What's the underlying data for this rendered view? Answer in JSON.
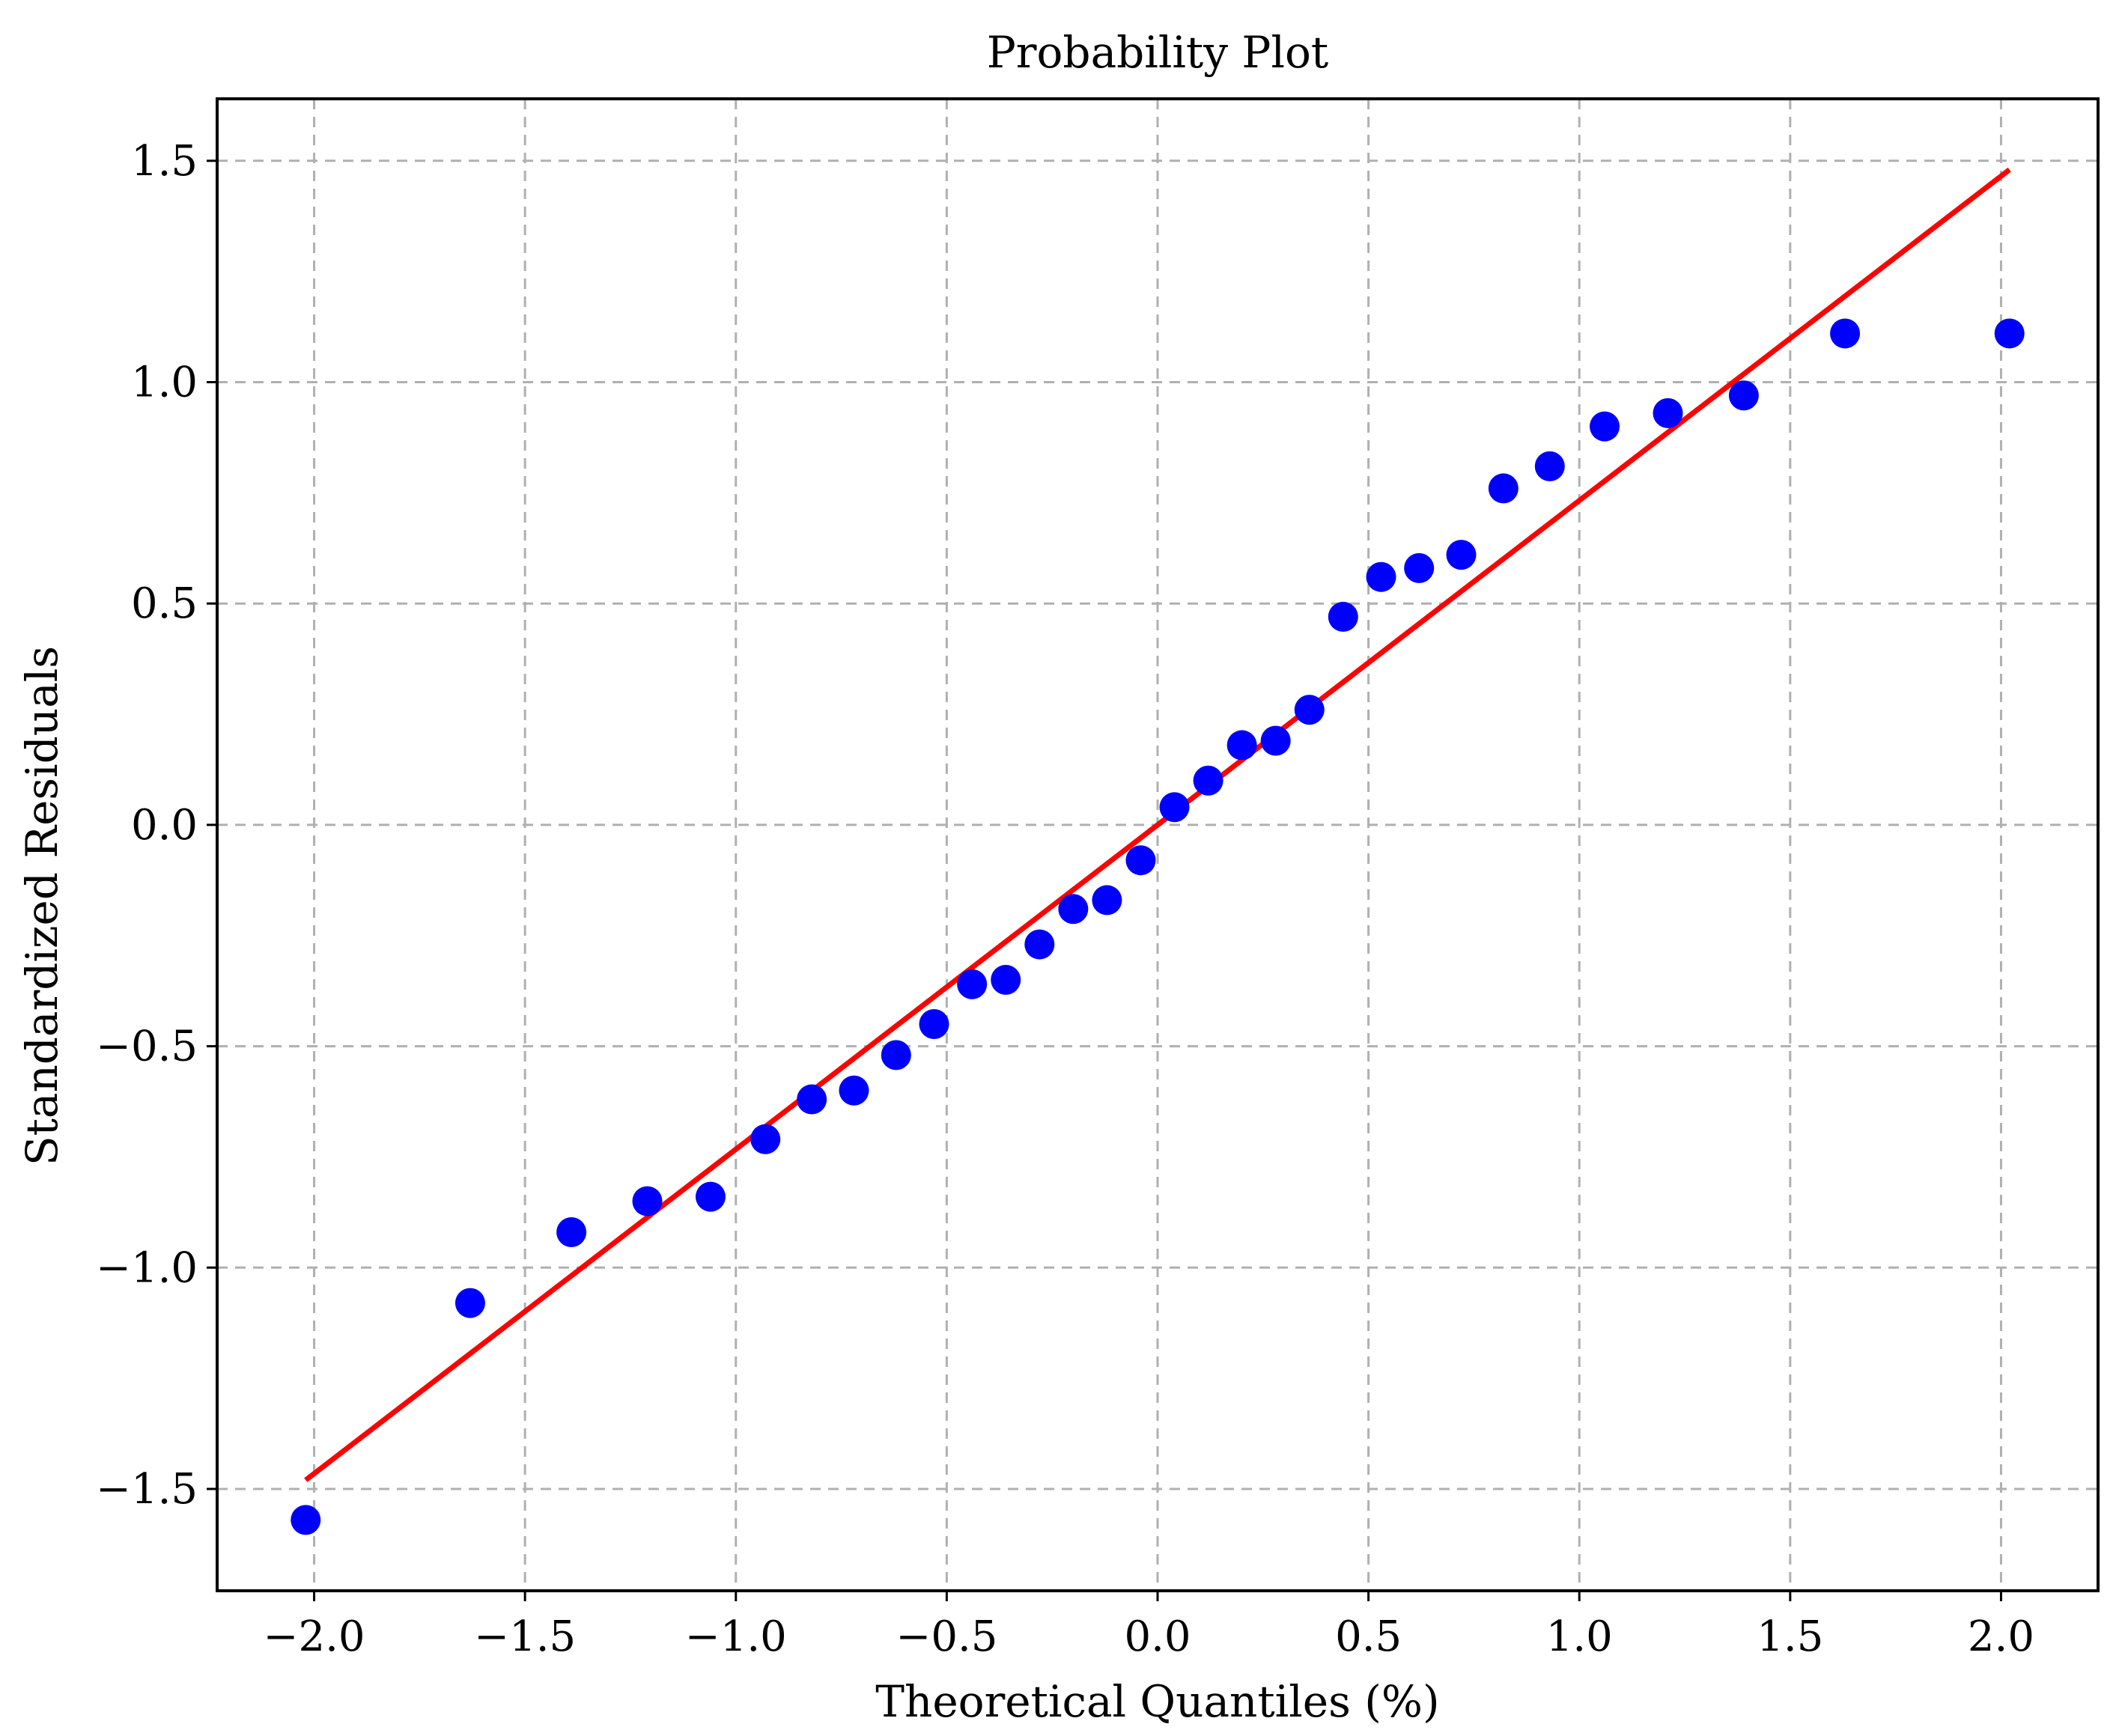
{
  "chart_data": {
    "type": "scatter",
    "title": "Probability Plot",
    "xlabel": "Theoretical Quantiles (%)",
    "ylabel": "Standardized Residuals",
    "xlim": [
      -2.23,
      2.23
    ],
    "ylim": [
      -1.73,
      1.64
    ],
    "grid": true,
    "x_ticks": [
      -2.0,
      -1.5,
      -1.0,
      -0.5,
      0.0,
      0.5,
      1.0,
      1.5,
      2.0
    ],
    "x_tick_labels": [
      "−2.0",
      "−1.5",
      "−1.0",
      "−0.5",
      "0.0",
      "0.5",
      "1.0",
      "1.5",
      "2.0"
    ],
    "y_ticks": [
      -1.5,
      -1.0,
      -0.5,
      0.0,
      0.5,
      1.0,
      1.5
    ],
    "y_tick_labels": [
      "−1.5",
      "−1.0",
      "−0.5",
      "0.0",
      "0.5",
      "1.0",
      "1.5"
    ],
    "series": [
      {
        "name": "Standardized residuals",
        "kind": "scatter",
        "color": "#0000ff",
        "points": [
          [
            -2.02,
            -1.57
          ],
          [
            -1.63,
            -1.08
          ],
          [
            -1.39,
            -0.92
          ],
          [
            -1.21,
            -0.85
          ],
          [
            -1.06,
            -0.84
          ],
          [
            -0.93,
            -0.71
          ],
          [
            -0.82,
            -0.62
          ],
          [
            -0.72,
            -0.6
          ],
          [
            -0.62,
            -0.52
          ],
          [
            -0.53,
            -0.45
          ],
          [
            -0.44,
            -0.36
          ],
          [
            -0.36,
            -0.35
          ],
          [
            -0.28,
            -0.27
          ],
          [
            -0.2,
            -0.19
          ],
          [
            -0.12,
            -0.17
          ],
          [
            -0.04,
            -0.08
          ],
          [
            0.04,
            0.04
          ],
          [
            0.12,
            0.1
          ],
          [
            0.2,
            0.18
          ],
          [
            0.28,
            0.19
          ],
          [
            0.36,
            0.26
          ],
          [
            0.44,
            0.47
          ],
          [
            0.53,
            0.56
          ],
          [
            0.62,
            0.58
          ],
          [
            0.72,
            0.61
          ],
          [
            0.82,
            0.76
          ],
          [
            0.93,
            0.81
          ],
          [
            1.06,
            0.9
          ],
          [
            1.21,
            0.93
          ],
          [
            1.39,
            0.97
          ],
          [
            1.63,
            1.11
          ],
          [
            2.02,
            1.11
          ]
        ]
      },
      {
        "name": "Reference line",
        "kind": "line",
        "color": "#ff0000",
        "x": [
          -2.02,
          2.02
        ],
        "y": [
          -1.48,
          1.48
        ]
      }
    ]
  }
}
